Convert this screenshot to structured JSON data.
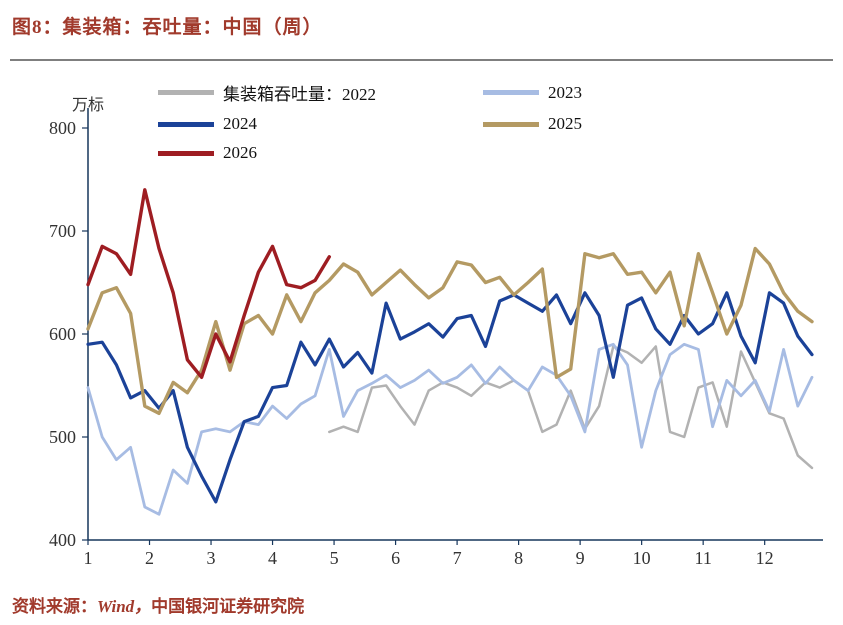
{
  "title": "图8：集装箱：吞吐量：中国（周）",
  "source": {
    "prefix": "资料来源：",
    "wind": "Wind，",
    "org": "中国银河证券研究院"
  },
  "chart_data": {
    "type": "line",
    "title": "集装箱：吞吐量：中国（周）",
    "xlabel": "",
    "ylabel": "万标",
    "ylim": [
      400,
      800
    ],
    "yticks": [
      400,
      500,
      600,
      700,
      800
    ],
    "xticks": [
      1,
      2,
      3,
      4,
      5,
      6,
      7,
      8,
      9,
      10,
      11,
      12
    ],
    "weeks_per_year": 52,
    "grid": false,
    "legend_position": "top",
    "legend_prefix": "集装箱吞吐量：",
    "axis_color": "#16365c",
    "tick_color": "#333333",
    "series": [
      {
        "name": "2022",
        "color": "#b2b2b2",
        "stroke_width": 2.5,
        "start_week": 18,
        "values": [
          505,
          510,
          505,
          548,
          550,
          530,
          512,
          545,
          553,
          548,
          540,
          553,
          548,
          555,
          545,
          505,
          512,
          545,
          508,
          530,
          588,
          582,
          572,
          588,
          505,
          500,
          548,
          553,
          510,
          583,
          553,
          523,
          518,
          482,
          470
        ]
      },
      {
        "name": "2023",
        "color": "#a7bce3",
        "stroke_width": 2.8,
        "start_week": 1,
        "values": [
          548,
          500,
          478,
          490,
          432,
          425,
          468,
          455,
          505,
          508,
          505,
          515,
          512,
          530,
          518,
          532,
          540,
          585,
          520,
          545,
          552,
          560,
          548,
          555,
          565,
          552,
          558,
          570,
          552,
          568,
          555,
          545,
          568,
          560,
          540,
          505,
          585,
          590,
          570,
          490,
          545,
          580,
          590,
          585,
          510,
          555,
          540,
          555,
          525,
          585,
          530,
          558
        ]
      },
      {
        "name": "2024",
        "color": "#1b4298",
        "stroke_width": 3.2,
        "start_week": 1,
        "values": [
          590,
          592,
          570,
          538,
          545,
          528,
          545,
          490,
          462,
          437,
          478,
          515,
          520,
          548,
          550,
          592,
          570,
          595,
          568,
          582,
          562,
          630,
          595,
          602,
          610,
          597,
          615,
          618,
          588,
          632,
          638,
          630,
          622,
          638,
          610,
          640,
          618,
          558,
          628,
          635,
          605,
          590,
          618,
          600,
          610,
          640,
          598,
          572,
          640,
          630,
          598,
          580
        ]
      },
      {
        "name": "2025",
        "color": "#b49a63",
        "stroke_width": 3.4,
        "start_week": 1,
        "values": [
          605,
          640,
          645,
          620,
          530,
          523,
          553,
          543,
          565,
          612,
          565,
          610,
          618,
          600,
          638,
          612,
          640,
          652,
          668,
          660,
          638,
          650,
          662,
          648,
          635,
          645,
          670,
          667,
          650,
          655,
          638,
          650,
          663,
          558,
          566,
          678,
          674,
          678,
          658,
          660,
          640,
          660,
          608,
          678,
          640,
          600,
          628,
          683,
          668,
          640,
          622,
          612
        ]
      },
      {
        "name": "2026",
        "color": "#9e1d22",
        "stroke_width": 3.4,
        "start_week": 1,
        "values": [
          648,
          685,
          678,
          658,
          740,
          683,
          640,
          575,
          558,
          600,
          573,
          618,
          660,
          685,
          648,
          645,
          652,
          675
        ]
      }
    ]
  }
}
